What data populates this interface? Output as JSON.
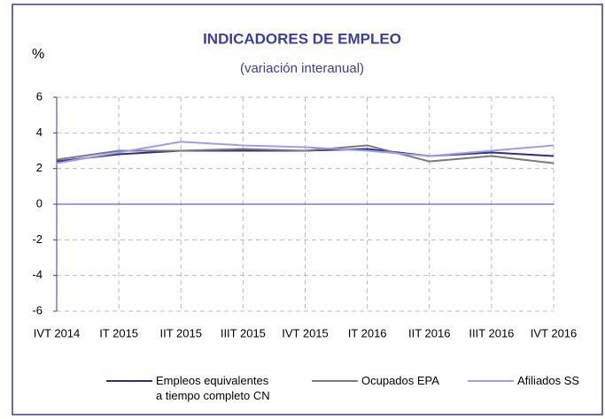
{
  "chart_data": {
    "type": "line",
    "title": "INDICADORES DE EMPLEO",
    "subtitle": "(variación interanual)",
    "y_label": "%",
    "categories": [
      "IVT 2014",
      "IT 2015",
      "IIT 2015",
      "IIIT 2015",
      "IVT 2015",
      "IT 2016",
      "IIT 2016",
      "IIIT 2016",
      "IVT 2016"
    ],
    "series": [
      {
        "name": "Empleos equivalentes\na tiempo completo CN",
        "color": "#2e2e86",
        "values": [
          2.4,
          2.8,
          3.0,
          3.0,
          3.0,
          3.1,
          2.7,
          2.9,
          2.7
        ]
      },
      {
        "name": "Ocupados EPA",
        "color": "#7a7a7a",
        "values": [
          2.5,
          3.0,
          3.0,
          3.1,
          3.0,
          3.3,
          2.4,
          2.7,
          2.3
        ]
      },
      {
        "name": "Afiliados SS",
        "color": "#9d9df0",
        "values": [
          2.3,
          2.9,
          3.5,
          3.3,
          3.2,
          3.0,
          2.7,
          3.0,
          3.3
        ]
      }
    ],
    "ylim": [
      -6,
      6
    ],
    "yticks": [
      -6,
      -4,
      -2,
      0,
      2,
      4,
      6
    ],
    "grid": true,
    "legend": "bottom"
  }
}
